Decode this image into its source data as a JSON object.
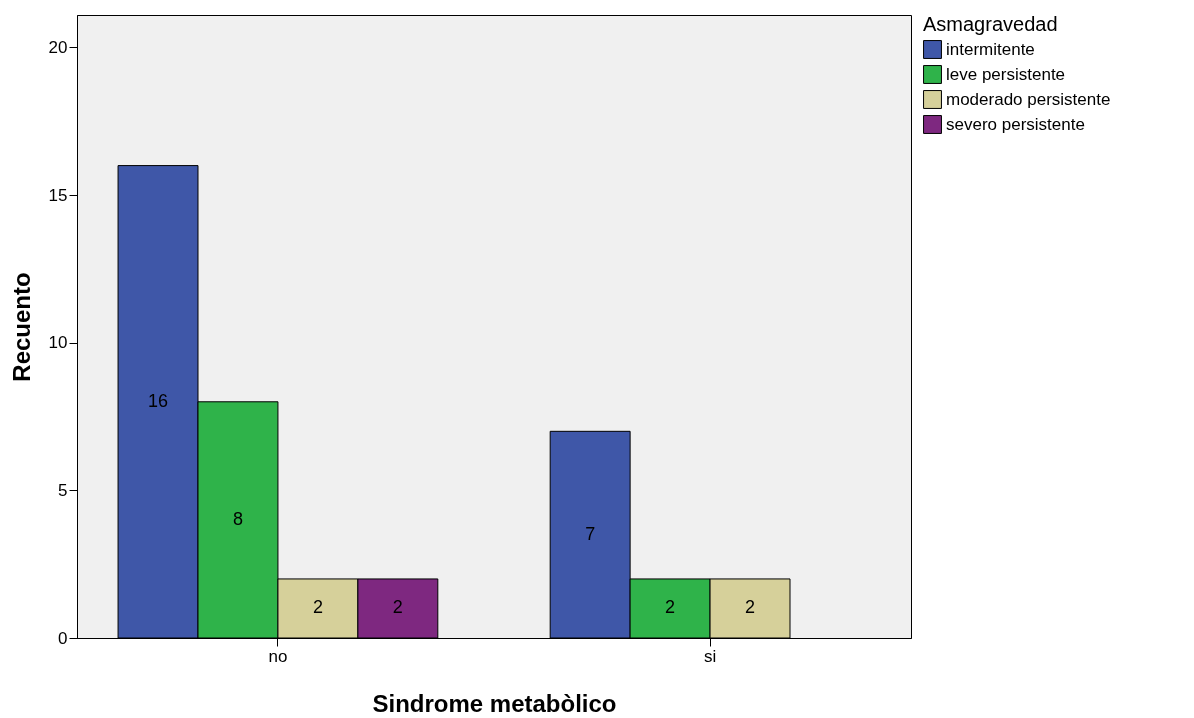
{
  "chart_data": {
    "type": "bar",
    "xlabel": "Sindrome metabòlico",
    "ylabel": "Recuento",
    "legend_title": "Asmagravedad",
    "categories": [
      "no",
      "si"
    ],
    "series": [
      {
        "name": "intermitente",
        "color": "#3f57a8",
        "values": [
          16,
          7
        ]
      },
      {
        "name": "leve persistente",
        "color": "#2fb34a",
        "values": [
          8,
          2
        ]
      },
      {
        "name": "moderado persistente",
        "color": "#d6d09a",
        "values": [
          2,
          2
        ]
      },
      {
        "name": "severo persistente",
        "color": "#7e2880",
        "values": [
          2,
          null
        ]
      }
    ],
    "ylim": [
      0,
      21.1
    ],
    "yticks": [
      0,
      5,
      10,
      15,
      20
    ],
    "grid": false,
    "legend": "top right",
    "data_labels": true
  }
}
